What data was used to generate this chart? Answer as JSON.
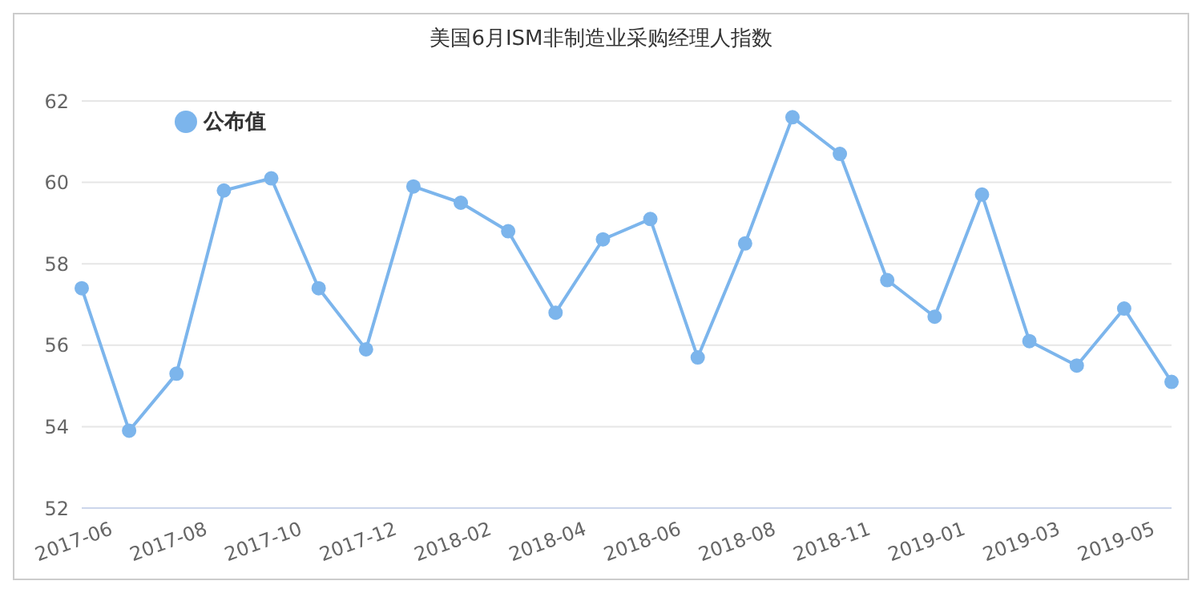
{
  "chart_data": {
    "type": "line",
    "title": "美国6月ISM非制造业采购经理人指数",
    "categories": [
      "2017-06",
      null,
      "2017-08",
      null,
      "2017-10",
      null,
      "2017-12",
      null,
      "2018-02",
      null,
      "2018-04",
      null,
      "2018-06",
      null,
      "2018-08",
      null,
      "2018-11",
      null,
      "2019-01",
      null,
      "2019-03",
      null,
      "2019-05",
      null
    ],
    "series": [
      {
        "name": "公布值",
        "color": "#7cb5ec",
        "values": [
          57.4,
          53.9,
          55.3,
          59.8,
          60.1,
          57.4,
          55.9,
          59.9,
          59.5,
          58.8,
          56.8,
          58.6,
          59.1,
          55.7,
          58.5,
          61.6,
          60.7,
          57.6,
          56.7,
          59.7,
          56.1,
          55.5,
          56.9,
          55.1
        ]
      }
    ],
    "ylim": [
      52,
      62
    ],
    "yticks": [
      52,
      54,
      56,
      58,
      60,
      62
    ],
    "grid": "y",
    "legend": "top left",
    "marker": "circle",
    "line_style": "solid"
  }
}
